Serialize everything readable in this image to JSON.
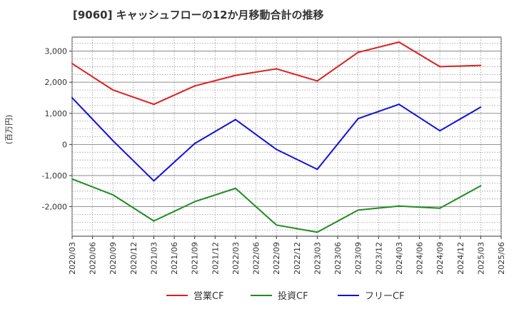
{
  "chart_data": {
    "type": "line",
    "title": "[9060]  キャッシュフローの12か月移動合計の推移",
    "ylabel": "(百万円)",
    "xlabel": "",
    "ylim": [
      -2950,
      3450
    ],
    "yticks": [
      3000,
      2000,
      1000,
      0,
      -1000,
      -2000
    ],
    "ytick_labels": [
      "3,000",
      "2,000",
      "1,000",
      "0",
      "-1,000",
      "-2,000"
    ],
    "x_ticks": [
      "2020/03",
      "2020/06",
      "2020/09",
      "2020/12",
      "2021/03",
      "2021/06",
      "2021/09",
      "2021/12",
      "2022/03",
      "2022/06",
      "2022/09",
      "2022/12",
      "2023/03",
      "2023/06",
      "2023/09",
      "2023/12",
      "2024/03",
      "2024/06",
      "2024/09",
      "2024/12",
      "2025/03",
      "2025/06"
    ],
    "grid": true,
    "legend_position": "bottom",
    "series": [
      {
        "name": "営業CF",
        "color": "#dd1f1f",
        "x": [
          "2020/03",
          "2020/09",
          "2021/03",
          "2021/09",
          "2022/03",
          "2022/09",
          "2023/03",
          "2023/09",
          "2024/03",
          "2024/09",
          "2025/03"
        ],
        "values": [
          2600,
          1750,
          1290,
          1880,
          2220,
          2430,
          2040,
          2960,
          3290,
          2500,
          2540
        ]
      },
      {
        "name": "投資CF",
        "color": "#228b22",
        "x": [
          "2020/03",
          "2020/09",
          "2021/03",
          "2021/09",
          "2022/03",
          "2022/09",
          "2023/03",
          "2023/09",
          "2024/03",
          "2024/09",
          "2025/03"
        ],
        "values": [
          -1110,
          -1620,
          -2460,
          -1840,
          -1410,
          -2590,
          -2820,
          -2110,
          -1980,
          -2050,
          -1330
        ]
      },
      {
        "name": "フリーCF",
        "color": "#1010dd",
        "x": [
          "2020/03",
          "2020/09",
          "2021/03",
          "2021/09",
          "2022/03",
          "2022/09",
          "2023/03",
          "2023/09",
          "2024/03",
          "2024/09",
          "2025/03"
        ],
        "values": [
          1500,
          120,
          -1170,
          30,
          800,
          -160,
          -800,
          830,
          1290,
          440,
          1200
        ]
      }
    ]
  }
}
